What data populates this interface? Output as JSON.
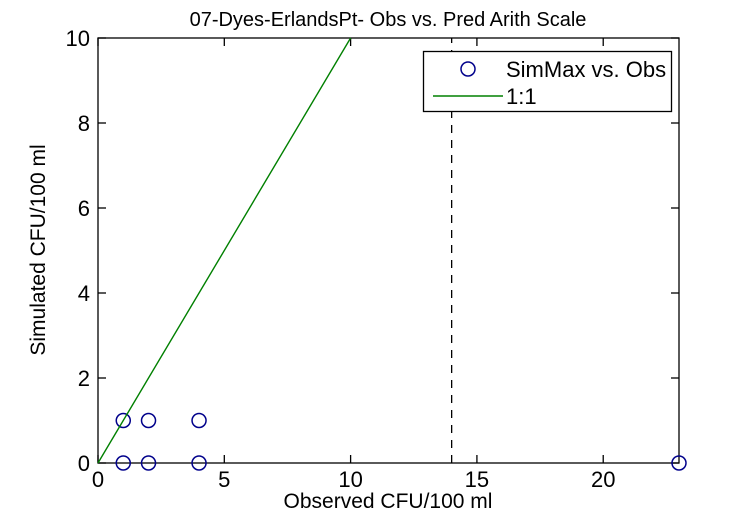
{
  "figure": {
    "background": "#ffffff",
    "axis_color": "#000000",
    "text_color": "#000000"
  },
  "chart_data": {
    "type": "scatter",
    "title": "07-Dyes-ErlandsPt- Obs vs. Pred Arith Scale",
    "xlabel": "Observed CFU/100 ml",
    "ylabel": "Simulated CFU/100 ml",
    "xlim": [
      0,
      23
    ],
    "ylim": [
      0,
      10
    ],
    "xticks": [
      0,
      5,
      10,
      15,
      20
    ],
    "yticks": [
      0,
      2,
      4,
      6,
      8,
      10
    ],
    "grid": false,
    "box": true,
    "legend": {
      "position": "top-right",
      "entries": [
        "SimMax vs. Obs",
        "1:1"
      ]
    },
    "series": [
      {
        "name": "SimMax vs. Obs",
        "kind": "scatter",
        "marker": "open-circle",
        "color": "#00008B",
        "points": [
          [
            1,
            0
          ],
          [
            2,
            0
          ],
          [
            4,
            0
          ],
          [
            23,
            0
          ],
          [
            1,
            1
          ],
          [
            2,
            1
          ],
          [
            4,
            1
          ]
        ]
      },
      {
        "name": "1:1",
        "kind": "line",
        "color": "#008000",
        "points": [
          [
            0,
            0
          ],
          [
            10,
            10
          ]
        ]
      }
    ],
    "annotations": [
      {
        "kind": "vline",
        "x": 14,
        "style": "dashed",
        "color": "#000000"
      }
    ]
  }
}
